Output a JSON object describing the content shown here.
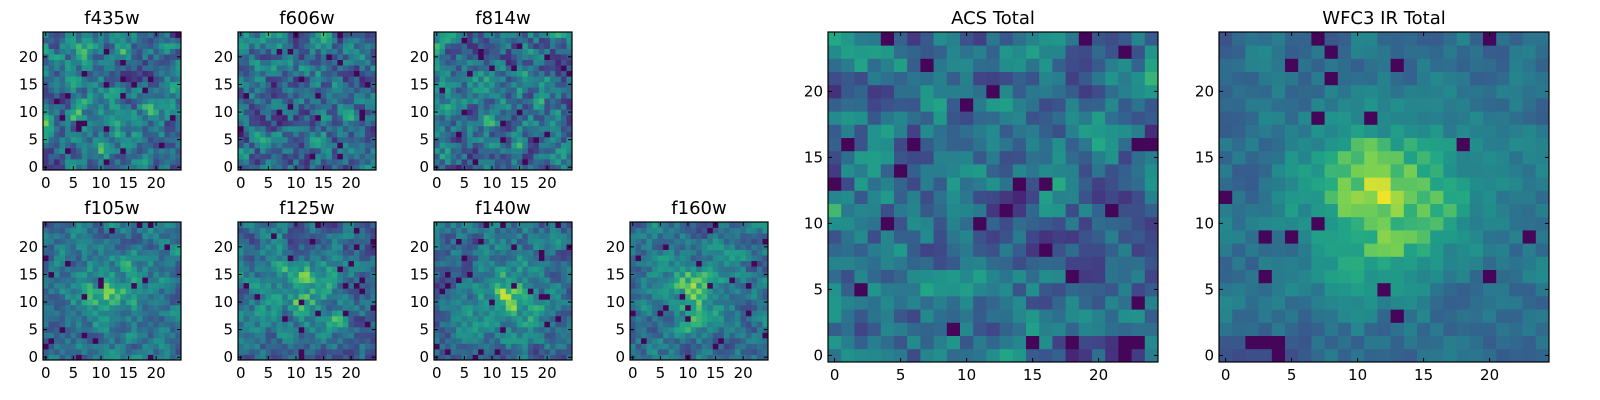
{
  "chart_data": [
    {
      "type": "heatmap",
      "title": "f435w",
      "seed": 11,
      "size": 25,
      "center": [
        12,
        7
      ],
      "amp": 0.15,
      "noise": 0.75,
      "xticks": [
        0,
        5,
        10,
        15,
        20
      ],
      "yticks": [
        0,
        5,
        10,
        15,
        20
      ],
      "colormap": "viridis"
    },
    {
      "type": "heatmap",
      "title": "f606w",
      "seed": 23,
      "size": 25,
      "center": [
        12,
        12
      ],
      "amp": 0.0,
      "noise": 0.8,
      "xticks": [
        0,
        5,
        10,
        15,
        20
      ],
      "yticks": [
        0,
        5,
        10,
        15,
        20
      ],
      "colormap": "viridis"
    },
    {
      "type": "heatmap",
      "title": "f814w",
      "seed": 37,
      "size": 25,
      "center": [
        12,
        12
      ],
      "amp": 0.05,
      "noise": 0.8,
      "xticks": [
        0,
        5,
        10,
        15,
        20
      ],
      "yticks": [
        0,
        5,
        10,
        15,
        20
      ],
      "colormap": "viridis"
    },
    {
      "type": "heatmap",
      "title": "f105w",
      "seed": 41,
      "size": 25,
      "center": [
        12,
        12
      ],
      "amp": 0.3,
      "noise": 0.55,
      "xticks": [
        0,
        5,
        10,
        15,
        20
      ],
      "yticks": [
        0,
        5,
        10,
        15,
        20
      ],
      "colormap": "viridis"
    },
    {
      "type": "heatmap",
      "title": "f125w",
      "seed": 53,
      "size": 25,
      "center": [
        12,
        12
      ],
      "amp": 0.25,
      "noise": 0.6,
      "xticks": [
        0,
        5,
        10,
        15,
        20
      ],
      "yticks": [
        0,
        5,
        10,
        15,
        20
      ],
      "colormap": "viridis"
    },
    {
      "type": "heatmap",
      "title": "f140w",
      "seed": 67,
      "size": 25,
      "center": [
        13,
        11
      ],
      "amp": 0.3,
      "noise": 0.55,
      "xticks": [
        0,
        5,
        10,
        15,
        20
      ],
      "yticks": [
        0,
        5,
        10,
        15,
        20
      ],
      "colormap": "viridis"
    },
    {
      "type": "heatmap",
      "title": "f160w",
      "seed": 71,
      "size": 25,
      "center": [
        12,
        12
      ],
      "amp": 0.3,
      "noise": 0.55,
      "xticks": [
        0,
        5,
        10,
        15,
        20
      ],
      "yticks": [
        0,
        5,
        10,
        15,
        20
      ],
      "colormap": "viridis"
    },
    {
      "type": "heatmap",
      "title": "ACS Total",
      "seed": 83,
      "size": 25,
      "center": [
        12,
        12
      ],
      "amp": 0.05,
      "noise": 0.7,
      "xticks": [
        0,
        5,
        10,
        15,
        20
      ],
      "yticks": [
        0,
        5,
        10,
        15,
        20
      ],
      "colormap": "viridis"
    },
    {
      "type": "heatmap",
      "title": "WFC3 IR Total",
      "seed": 97,
      "size": 25,
      "center": [
        12,
        12
      ],
      "amp": 0.45,
      "noise": 0.3,
      "xticks": [
        0,
        5,
        10,
        15,
        20
      ],
      "yticks": [
        0,
        5,
        10,
        15,
        20
      ],
      "colormap": "viridis"
    }
  ]
}
